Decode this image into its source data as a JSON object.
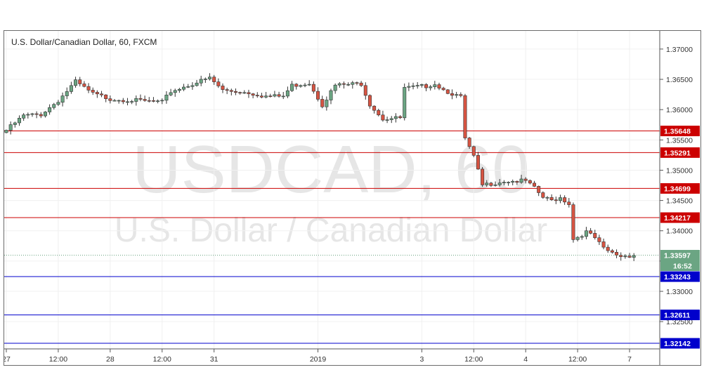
{
  "chart_data": {
    "type": "candlestick",
    "title": "U.S. Dollar/Canadian Dollar, 60, FXCM",
    "watermark": {
      "symbol": "USDCAD, 60",
      "name": "U.S. Dollar / Canadian Dollar"
    },
    "ylim": [
      1.3205,
      1.373
    ],
    "yticks": [
      "1.37000",
      "1.36500",
      "1.36000",
      "1.35500",
      "1.35000",
      "1.34500",
      "1.34000",
      "1.33500",
      "1.33000",
      "1.32500"
    ],
    "xticks": [
      {
        "label": "27",
        "index": 0
      },
      {
        "label": "12:00",
        "index": 12
      },
      {
        "label": "28",
        "index": 24
      },
      {
        "label": "12:00",
        "index": 36
      },
      {
        "label": "31",
        "index": 48
      },
      {
        "label": "2019",
        "index": 72
      },
      {
        "label": "3",
        "index": 96
      },
      {
        "label": "12:00",
        "index": 108
      },
      {
        "label": "4",
        "index": 120
      },
      {
        "label": "12:00",
        "index": 132
      },
      {
        "label": "7",
        "index": 144
      }
    ],
    "resistance": [
      {
        "value": 1.35648,
        "label": "1.35648"
      },
      {
        "value": 1.35291,
        "label": "1.35291"
      },
      {
        "value": 1.34699,
        "label": "1.34699"
      },
      {
        "value": 1.34217,
        "label": "1.34217"
      }
    ],
    "support": [
      {
        "value": 1.33243,
        "label": "1.33243"
      },
      {
        "value": 1.32611,
        "label": "1.32611"
      },
      {
        "value": 1.32142,
        "label": "1.32142"
      }
    ],
    "last_price": {
      "value": 1.33597,
      "label": "1.33597",
      "countdown": "16:52"
    },
    "colors": {
      "up": "#6ba583",
      "down": "#d75442",
      "wick": "#333333",
      "resistance": "#cc0000",
      "support": "#0000cc",
      "last": "#6ba583"
    },
    "anchors": [
      [
        0,
        1.3566
      ],
      [
        4,
        1.359
      ],
      [
        8,
        1.3592
      ],
      [
        12,
        1.3615
      ],
      [
        16,
        1.3646
      ],
      [
        20,
        1.3626
      ],
      [
        24,
        1.3618
      ],
      [
        30,
        1.3615
      ],
      [
        36,
        1.3612
      ],
      [
        38,
        1.363
      ],
      [
        44,
        1.3645
      ],
      [
        47,
        1.3652
      ],
      [
        50,
        1.3632
      ],
      [
        56,
        1.3628
      ],
      [
        60,
        1.3622
      ],
      [
        64,
        1.3622
      ],
      [
        66,
        1.364
      ],
      [
        70,
        1.3644
      ],
      [
        73,
        1.3608
      ],
      [
        76,
        1.364
      ],
      [
        82,
        1.3643
      ],
      [
        84,
        1.3609
      ],
      [
        87,
        1.3585
      ],
      [
        91,
        1.3586
      ],
      [
        92,
        1.3635
      ],
      [
        97,
        1.3639
      ],
      [
        99,
        1.3643
      ],
      [
        101,
        1.3633
      ],
      [
        105,
        1.362
      ],
      [
        106,
        1.3552
      ],
      [
        108,
        1.3522
      ],
      [
        110,
        1.3475
      ],
      [
        112,
        1.3478
      ],
      [
        115,
        1.3482
      ],
      [
        118,
        1.3482
      ],
      [
        120,
        1.3482
      ],
      [
        122,
        1.347
      ],
      [
        124,
        1.3455
      ],
      [
        126,
        1.345
      ],
      [
        128,
        1.3455
      ],
      [
        130,
        1.3445
      ],
      [
        131,
        1.3386
      ],
      [
        134,
        1.3398
      ],
      [
        136,
        1.3388
      ],
      [
        138,
        1.337
      ],
      [
        140,
        1.3363
      ],
      [
        142,
        1.3358
      ],
      [
        145,
        1.336
      ]
    ]
  }
}
